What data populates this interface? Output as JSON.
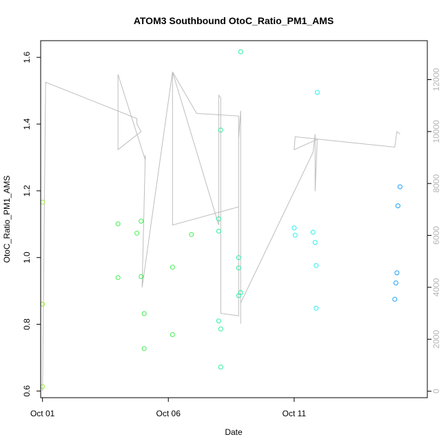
{
  "chart_data": {
    "type": "scatter",
    "title": "ATOM3 Southbound OtoC_Ratio_PM1_AMS",
    "xlabel": "Date",
    "ylabel": "OtoC_Ratio_PM1_AMS",
    "x_axis": {
      "type": "date",
      "range": [
        "2016-09-30T22:15",
        "2016-10-16T07:00"
      ],
      "ticks": [
        "2016-10-01",
        "2016-10-06",
        "2016-10-11"
      ],
      "tick_labels": [
        "Oct 01",
        "Oct 06",
        "Oct 11"
      ]
    },
    "y_axis": {
      "range": [
        0.58,
        1.65
      ],
      "ticks": [
        0.6,
        0.8,
        1.0,
        1.2,
        1.4,
        1.6
      ],
      "tick_labels": [
        "0.6",
        "0.8",
        "1.0",
        "1.2",
        "1.4",
        "1.6"
      ]
    },
    "y2_axis": {
      "range": [
        -250,
        13500
      ],
      "ticks": [
        0,
        2000,
        4000,
        6000,
        8000,
        10000,
        12000
      ],
      "tick_labels": [
        "0",
        "2000",
        "4000",
        "6000",
        "8000",
        "10000",
        "12000"
      ],
      "color": "#b5b5b5"
    },
    "grid": false,
    "point_colors": [
      "#98f03a",
      "#3af04a",
      "#28f0a0",
      "#28f0f0",
      "#1aa0f5"
    ],
    "points": [
      {
        "x": "2016-10-01T00:00",
        "y": 1.166,
        "color": "#98f03a"
      },
      {
        "x": "2016-10-01T00:00",
        "y": 0.86,
        "color": "#98f03a"
      },
      {
        "x": "2016-10-01T00:00",
        "y": 0.613,
        "color": "#98f03a"
      },
      {
        "x": "2016-10-04T00:00",
        "y": 1.101,
        "color": "#3af04a"
      },
      {
        "x": "2016-10-04T00:00",
        "y": 0.94,
        "color": "#3af04a"
      },
      {
        "x": "2016-10-04T18:00",
        "y": 1.073,
        "color": "#3af04a"
      },
      {
        "x": "2016-10-04T22:00",
        "y": 1.109,
        "color": "#3af04a"
      },
      {
        "x": "2016-10-04T22:00",
        "y": 0.943,
        "color": "#3af04a"
      },
      {
        "x": "2016-10-05T01:00",
        "y": 0.832,
        "color": "#3af04a"
      },
      {
        "x": "2016-10-05T01:00",
        "y": 0.727,
        "color": "#3af04a"
      },
      {
        "x": "2016-10-06T04:00",
        "y": 0.971,
        "color": "#3af04a"
      },
      {
        "x": "2016-10-06T04:00",
        "y": 0.769,
        "color": "#3af04a"
      },
      {
        "x": "2016-10-06T22:00",
        "y": 1.069,
        "color": "#3af04a"
      },
      {
        "x": "2016-10-08T00:00",
        "y": 1.079,
        "color": "#28f0a0"
      },
      {
        "x": "2016-10-08T00:00",
        "y": 1.116,
        "color": "#28f0a0"
      },
      {
        "x": "2016-10-08T02:00",
        "y": 1.382,
        "color": "#28f0a0"
      },
      {
        "x": "2016-10-08T00:00",
        "y": 0.81,
        "color": "#28f0a0"
      },
      {
        "x": "2016-10-08T02:00",
        "y": 0.786,
        "color": "#28f0a0"
      },
      {
        "x": "2016-10-08T02:00",
        "y": 0.672,
        "color": "#28f0a0"
      },
      {
        "x": "2016-10-08T19:00",
        "y": 1.0,
        "color": "#28f0a0"
      },
      {
        "x": "2016-10-08T19:00",
        "y": 0.969,
        "color": "#28f0a0"
      },
      {
        "x": "2016-10-08T21:00",
        "y": 1.617,
        "color": "#28f0a0"
      },
      {
        "x": "2016-10-08T19:00",
        "y": 0.886,
        "color": "#28f0a0"
      },
      {
        "x": "2016-10-08T21:00",
        "y": 0.895,
        "color": "#28f0a0"
      },
      {
        "x": "2016-10-11T00:00",
        "y": 1.089,
        "color": "#28f0f0"
      },
      {
        "x": "2016-10-11T01:00",
        "y": 1.067,
        "color": "#28f0f0"
      },
      {
        "x": "2016-10-11T18:00",
        "y": 1.076,
        "color": "#28f0f0"
      },
      {
        "x": "2016-10-11T20:00",
        "y": 1.045,
        "color": "#28f0f0"
      },
      {
        "x": "2016-10-11T22:00",
        "y": 1.495,
        "color": "#28f0f0"
      },
      {
        "x": "2016-10-11T21:00",
        "y": 0.976,
        "color": "#28f0f0"
      },
      {
        "x": "2016-10-11T21:00",
        "y": 0.848,
        "color": "#28f0f0"
      },
      {
        "x": "2016-10-15T00:00",
        "y": 0.875,
        "color": "#1aa0f5"
      },
      {
        "x": "2016-10-15T02:00",
        "y": 0.954,
        "color": "#1aa0f5"
      },
      {
        "x": "2016-10-15T01:00",
        "y": 0.924,
        "color": "#1aa0f5"
      },
      {
        "x": "2016-10-15T03:00",
        "y": 1.155,
        "color": "#1aa0f5"
      },
      {
        "x": "2016-10-15T05:00",
        "y": 1.212,
        "color": "#1aa0f5"
      }
    ],
    "line_series": {
      "axis": "y2",
      "color": "#bdbdbd",
      "points": [
        {
          "x": "2016-10-01T00:00",
          "y": 0
        },
        {
          "x": "2016-10-01T03:00",
          "y": 11900
        },
        {
          "x": "2016-10-04T18:00",
          "y": 10500
        },
        {
          "x": "2016-10-04T18:00",
          "y": 10300
        },
        {
          "x": "2016-10-04T22:00",
          "y": 10000
        },
        {
          "x": "2016-10-04T00:00",
          "y": 9300
        },
        {
          "x": "2016-10-04T00:00",
          "y": 12200
        },
        {
          "x": "2016-10-05T02:00",
          "y": 8900
        },
        {
          "x": "2016-10-05T02:00",
          "y": 9100
        },
        {
          "x": "2016-10-04T23:00",
          "y": 4000
        },
        {
          "x": "2016-10-06T04:00",
          "y": 12300
        },
        {
          "x": "2016-10-06T04:00",
          "y": 6400
        },
        {
          "x": "2016-10-08T19:00",
          "y": 7100
        },
        {
          "x": "2016-10-08T19:00",
          "y": 10600
        },
        {
          "x": "2016-10-07T03:00",
          "y": 10700
        },
        {
          "x": "2016-10-06T04:00",
          "y": 12300
        },
        {
          "x": "2016-10-08T00:00",
          "y": 6400
        },
        {
          "x": "2016-10-08T00:00",
          "y": 11400
        },
        {
          "x": "2016-10-08T02:00",
          "y": 11300
        },
        {
          "x": "2016-10-08T02:00",
          "y": 3000
        },
        {
          "x": "2016-10-08T19:00",
          "y": 2900
        },
        {
          "x": "2016-10-08T19:00",
          "y": 9700
        },
        {
          "x": "2016-10-08T21:00",
          "y": 10800
        },
        {
          "x": "2016-10-08T21:00",
          "y": 3200
        },
        {
          "x": "2016-10-08T21:00",
          "y": 2600
        },
        {
          "x": "2016-10-08T21:00",
          "y": 3400
        },
        {
          "x": "2016-10-11T18:00",
          "y": 9200
        },
        {
          "x": "2016-10-11T20:00",
          "y": 9900
        },
        {
          "x": "2016-10-11T20:00",
          "y": 7700
        },
        {
          "x": "2016-10-11T22:00",
          "y": 9700
        },
        {
          "x": "2016-10-11T00:00",
          "y": 9300
        },
        {
          "x": "2016-10-11T01:00",
          "y": 9800
        },
        {
          "x": "2016-10-15T00:00",
          "y": 9400
        },
        {
          "x": "2016-10-15T02:00",
          "y": 10000
        },
        {
          "x": "2016-10-15T05:00",
          "y": 9900
        }
      ]
    }
  }
}
